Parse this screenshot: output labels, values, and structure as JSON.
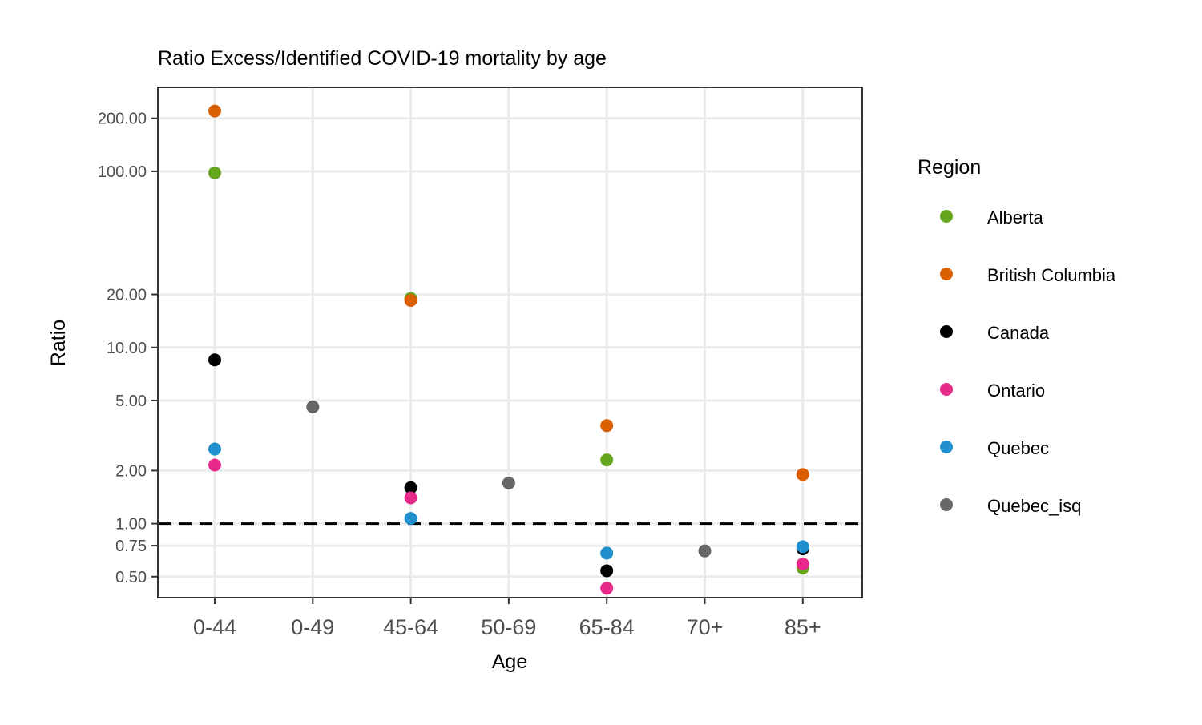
{
  "chart_data": {
    "type": "scatter",
    "title": "Ratio Excess/Identified COVID-19 mortality by age",
    "xlabel": "Age",
    "ylabel": "Ratio",
    "categories": [
      "0-44",
      "0-49",
      "45-64",
      "50-69",
      "65-84",
      "70+",
      "85+"
    ],
    "y_scale": "log",
    "ylim": [
      0.38,
      300
    ],
    "y_ticks": [
      0.5,
      0.75,
      1,
      2,
      5,
      10,
      20,
      100,
      200
    ],
    "y_tick_labels": [
      "0.50",
      "0.75",
      "1.00",
      "2.00",
      "5.00",
      "10.00",
      "20.00",
      "100.00",
      "200.00"
    ],
    "reference_line": {
      "y": 1,
      "style": "dashed"
    },
    "grid": true,
    "legend": {
      "title": "Region",
      "position": "right"
    },
    "series": [
      {
        "name": "Alberta",
        "color": "#66a61e",
        "points": [
          {
            "x": "0-44",
            "y": 98
          },
          {
            "x": "45-64",
            "y": 19
          },
          {
            "x": "65-84",
            "y": 2.3
          },
          {
            "x": "85+",
            "y": 0.56
          }
        ]
      },
      {
        "name": "British Columbia",
        "color": "#d95f02",
        "points": [
          {
            "x": "0-44",
            "y": 220
          },
          {
            "x": "45-64",
            "y": 18.5
          },
          {
            "x": "65-84",
            "y": 3.6
          },
          {
            "x": "85+",
            "y": 1.9
          }
        ]
      },
      {
        "name": "Canada",
        "color": "#000000",
        "points": [
          {
            "x": "0-44",
            "y": 8.5
          },
          {
            "x": "45-64",
            "y": 1.6
          },
          {
            "x": "65-84",
            "y": 0.54
          },
          {
            "x": "85+",
            "y": 0.72
          }
        ]
      },
      {
        "name": "Ontario",
        "color": "#e7298a",
        "points": [
          {
            "x": "0-44",
            "y": 2.15
          },
          {
            "x": "45-64",
            "y": 1.4
          },
          {
            "x": "65-84",
            "y": 0.43
          },
          {
            "x": "85+",
            "y": 0.59
          }
        ]
      },
      {
        "name": "Quebec",
        "color": "#1f8fce",
        "points": [
          {
            "x": "0-44",
            "y": 2.65
          },
          {
            "x": "45-64",
            "y": 1.07
          },
          {
            "x": "65-84",
            "y": 0.68
          },
          {
            "x": "85+",
            "y": 0.74
          }
        ]
      },
      {
        "name": "Quebec_isq",
        "color": "#666666",
        "points": [
          {
            "x": "0-49",
            "y": 4.6
          },
          {
            "x": "50-69",
            "y": 1.7
          },
          {
            "x": "70+",
            "y": 0.7
          }
        ]
      }
    ]
  }
}
